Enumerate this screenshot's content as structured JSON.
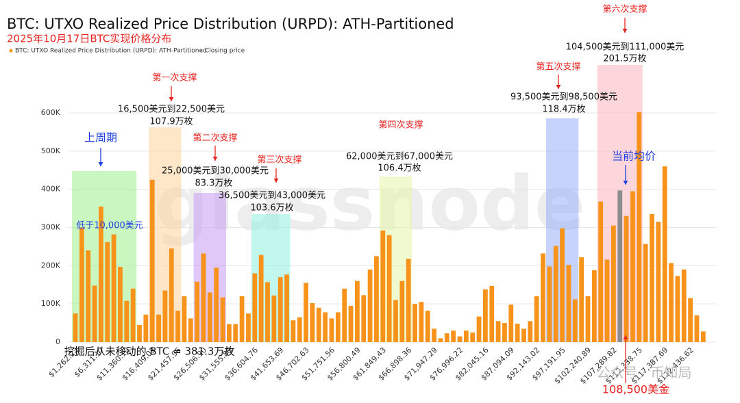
{
  "chart_data": {
    "type": "bar",
    "title": "BTC: UTXO Realized Price Distribution (URPD): ATH-Partitioned",
    "subtitle": "2025年10月17日BTC实现价格分布",
    "categories": [
      "$1,262.23",
      null,
      null,
      null,
      "$6,311.17",
      null,
      null,
      null,
      "$11,360.10",
      null,
      null,
      null,
      "$16,409.03",
      null,
      null,
      null,
      "$21,457.96",
      null,
      null,
      null,
      "$26,506.90",
      null,
      null,
      null,
      "$31,555.83",
      null,
      null,
      null,
      "$36,604.76",
      null,
      null,
      null,
      "$41,653.69",
      null,
      null,
      null,
      "$46,702.63",
      null,
      null,
      null,
      "$51,751.56",
      null,
      null,
      null,
      "$56,800.49",
      null,
      null,
      null,
      "$61,849.43",
      null,
      null,
      null,
      "$66,898.36",
      null,
      null,
      null,
      "$71,947.29",
      null,
      null,
      null,
      "$76,996.22",
      null,
      null,
      null,
      "$82,045.16",
      null,
      null,
      null,
      "$87,094.09",
      null,
      null,
      null,
      "$92,143.02",
      null,
      null,
      null,
      "$97,191.95",
      null,
      null,
      null,
      "$102,240.89",
      null,
      null,
      null,
      "$107,289.82",
      null,
      null,
      null,
      "$112,338.75",
      null,
      null,
      null,
      "$117,387.69",
      null,
      null,
      null,
      "$122,436.62",
      null,
      null
    ],
    "series": [
      {
        "name": "BTC: UTXO Realized Price Distribution (URPD): ATH-Partitioned",
        "color": "#f7931a",
        "values": [
          75000,
          300000,
          240000,
          148000,
          355000,
          262000,
          282000,
          197000,
          108000,
          140000,
          45000,
          72000,
          425000,
          72000,
          135000,
          245000,
          82000,
          120000,
          62000,
          158000,
          232000,
          130000,
          195000,
          117000,
          47000,
          47000,
          120000,
          75000,
          180000,
          228000,
          157000,
          122000,
          170000,
          177000,
          57000,
          65000,
          155000,
          102000,
          90000,
          78000,
          62000,
          78000,
          140000,
          95000,
          160000,
          123000,
          190000,
          225000,
          292000,
          280000,
          110000,
          160000,
          218000,
          100000,
          105000,
          82000,
          35000,
          10000,
          23000,
          30000,
          15000,
          30000,
          25000,
          67000,
          138000,
          147000,
          55000,
          50000,
          98000,
          48000,
          35000,
          55000,
          120000,
          232000,
          198000,
          252000,
          298000,
          202000,
          112000,
          222000,
          120000,
          188000,
          368000,
          216000,
          305000,
          null,
          330000,
          395000,
          602000,
          257000,
          335000,
          315000,
          460000,
          207000,
          173000,
          190000,
          115000,
          70000,
          28000
        ]
      },
      {
        "name": "Closing price",
        "color": "#8c8c8c",
        "values": [
          null,
          null,
          null,
          null,
          null,
          null,
          null,
          null,
          null,
          null,
          null,
          null,
          null,
          null,
          null,
          null,
          null,
          null,
          null,
          null,
          null,
          null,
          null,
          null,
          null,
          null,
          null,
          null,
          null,
          null,
          null,
          null,
          null,
          null,
          null,
          null,
          null,
          null,
          null,
          null,
          null,
          null,
          null,
          null,
          null,
          null,
          null,
          null,
          null,
          null,
          null,
          null,
          null,
          null,
          null,
          null,
          null,
          null,
          null,
          null,
          null,
          null,
          null,
          null,
          null,
          null,
          null,
          null,
          null,
          null,
          null,
          null,
          null,
          null,
          null,
          null,
          null,
          null,
          null,
          null,
          null,
          null,
          null,
          null,
          null,
          397000,
          null,
          null,
          null,
          null,
          null,
          null,
          null,
          null,
          null,
          null,
          null,
          null,
          null
        ]
      }
    ],
    "ylim": [
      0,
      600000
    ],
    "yticks": [
      0,
      {
        "value": 100000,
        "label": "100K"
      },
      {
        "value": 200000,
        "label": "200K"
      },
      {
        "value": 300000,
        "label": "300K"
      },
      {
        "value": 400000,
        "label": "400K"
      },
      {
        "value": 500000,
        "label": "500K"
      },
      {
        "value": 600000,
        "label": "600K"
      }
    ],
    "grid": true,
    "legend": "top-left",
    "annotations": [
      "上周期",
      "低于10,000美元",
      "第一次支撑",
      "16,500美元到22,500美元",
      "107.9万枚",
      "第二次支撑",
      "25,000美元到30,000美元",
      "83.3万枚",
      "第三次支撑",
      "36,500美元到43,000美元",
      "103.6万枚",
      "第四次支撑",
      "62,000美元到67,000美元",
      "106.4万枚",
      "第五次支撑",
      "93,500美元到98,500美元",
      "118.4万枚",
      "第六次支撑",
      "104,500美元到111,000美元",
      "201.5万枚",
      "当前均价",
      "108,500美金",
      "挖掘后从未移动的 BTC = 381.3万枚",
      "glassnode",
      "公众号 · 币知局"
    ]
  }
}
